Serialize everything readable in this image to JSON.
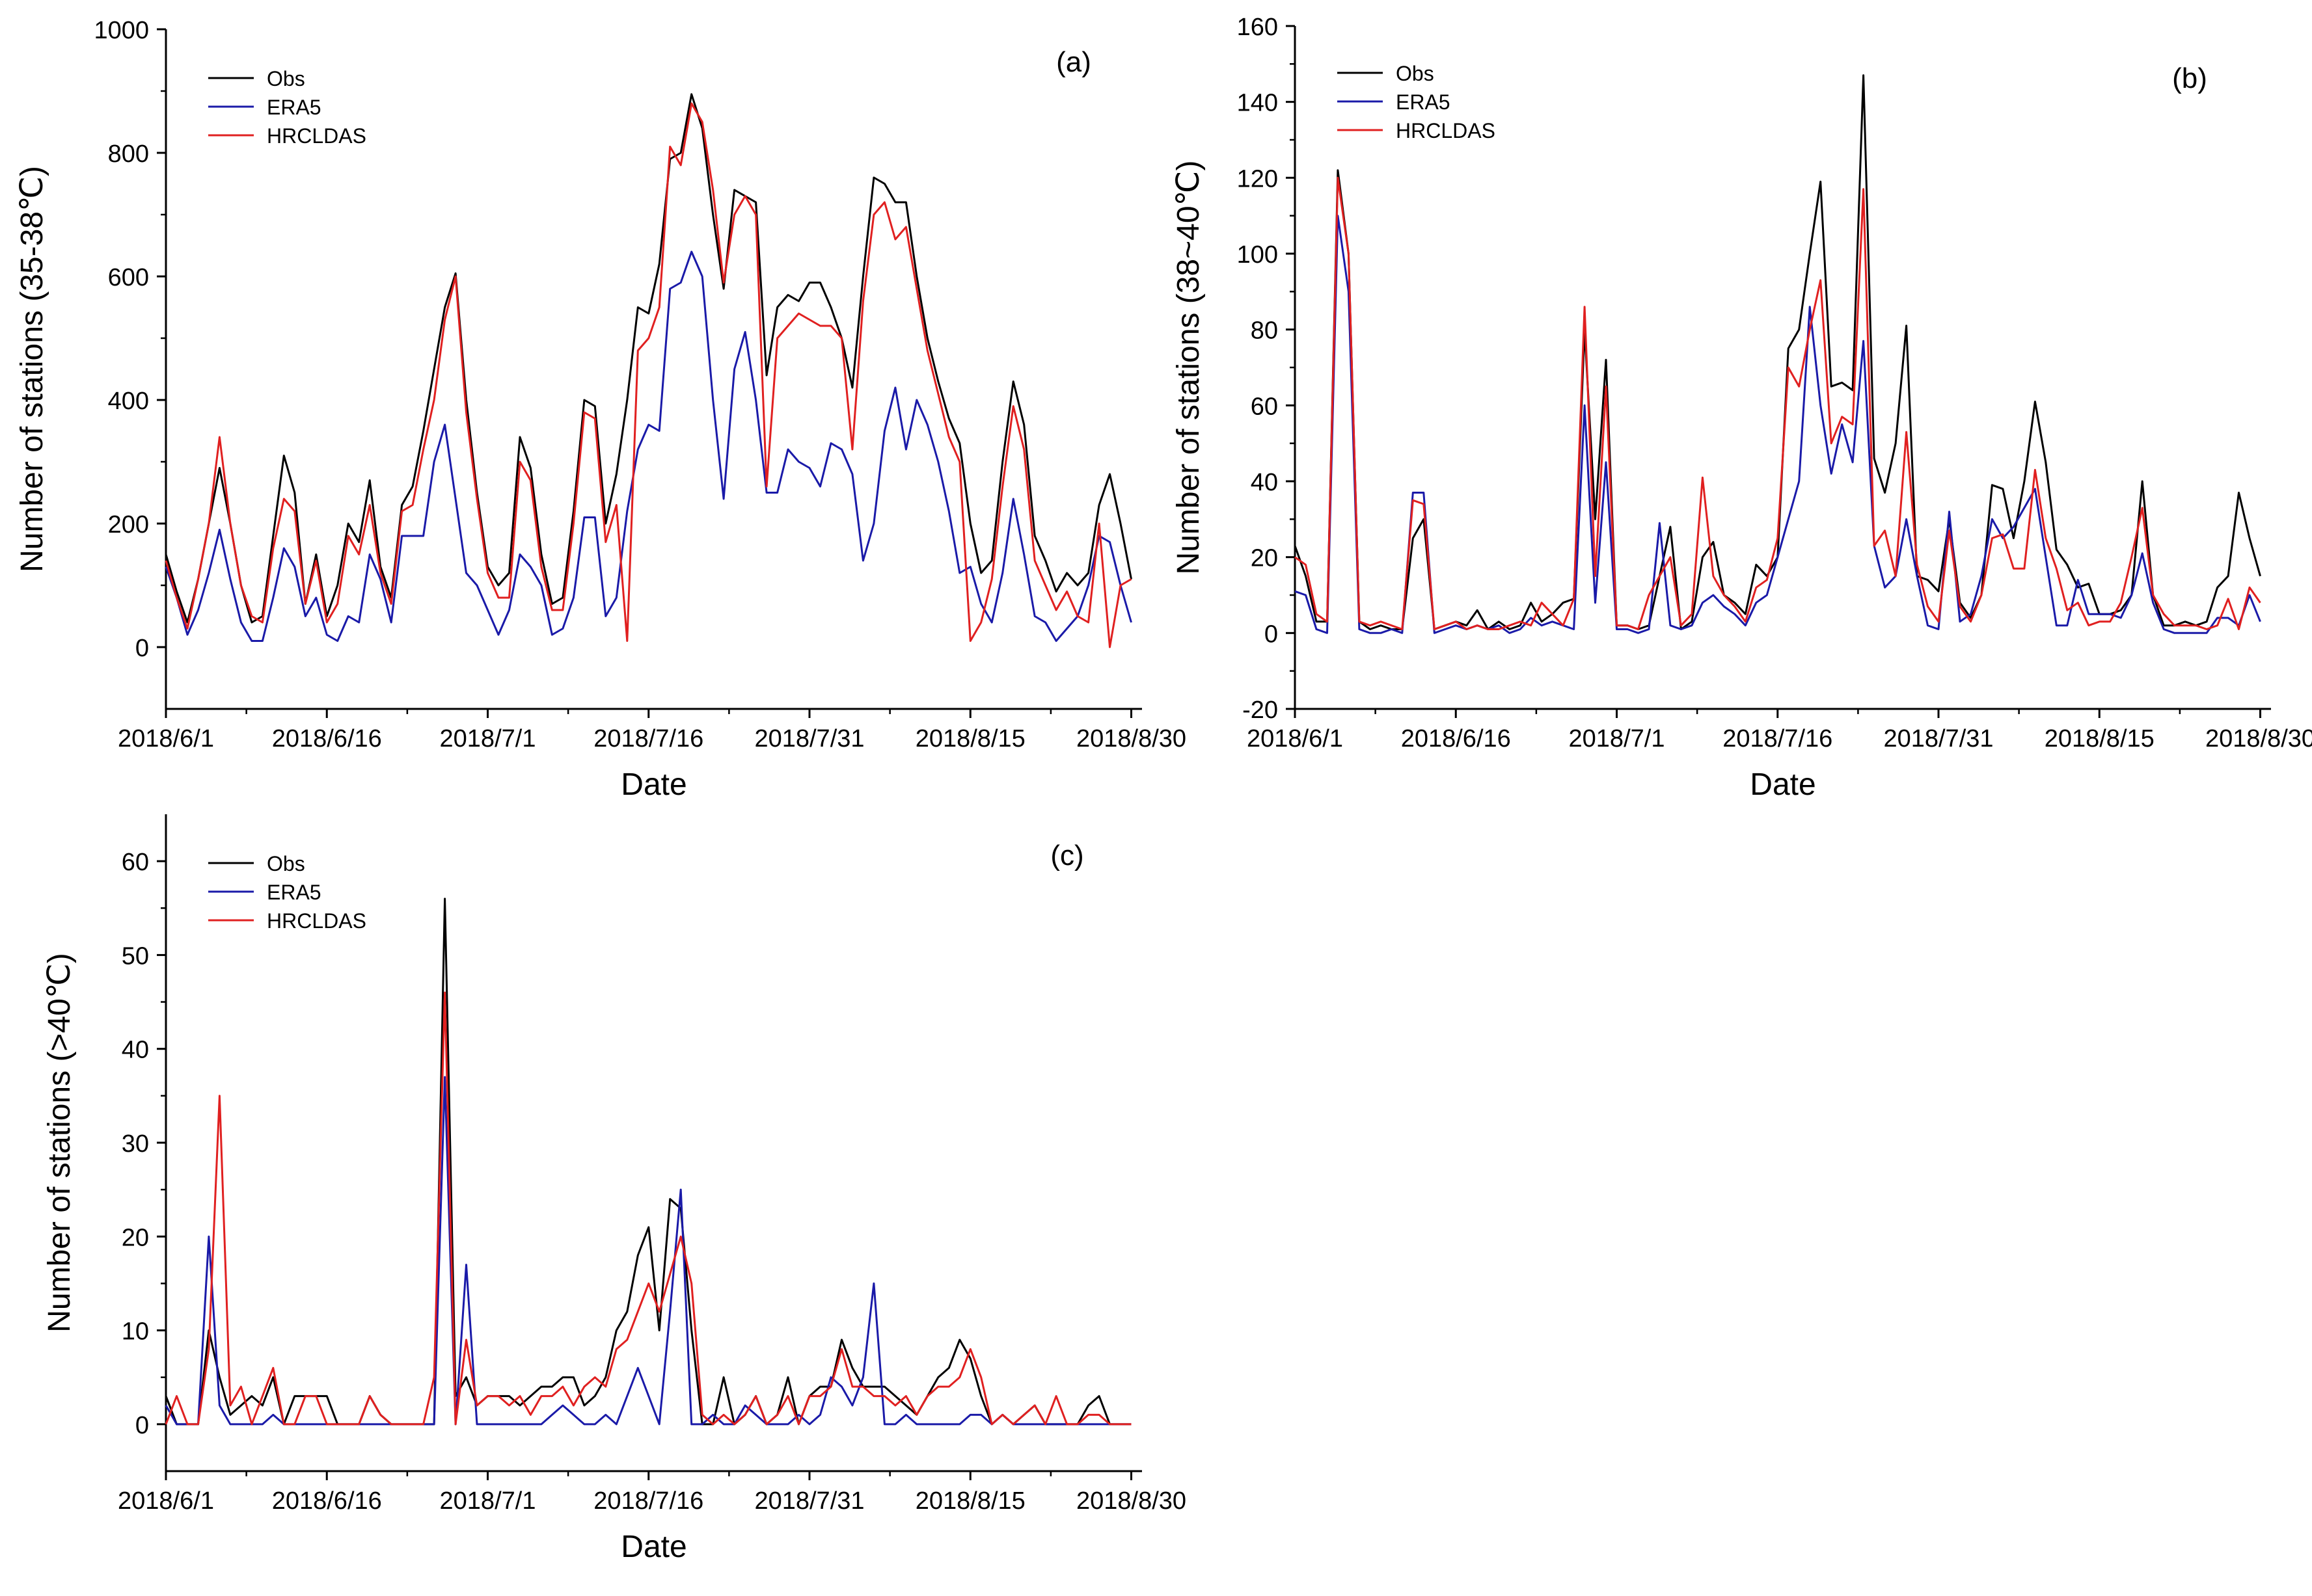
{
  "chart_data": [
    {
      "id": "a",
      "type": "line",
      "panel_label": "(a)",
      "xlabel": "Date",
      "ylabel": "Number of stations (35-38℃)",
      "ylim": [
        -100,
        1000
      ],
      "yticks": [
        0,
        200,
        400,
        600,
        800,
        1000
      ],
      "xlim": [
        0,
        91
      ],
      "xticks": [
        {
          "v": 0,
          "label": "2018/6/1"
        },
        {
          "v": 15,
          "label": "2018/6/16"
        },
        {
          "v": 30,
          "label": "2018/7/1"
        },
        {
          "v": 45,
          "label": "2018/7/16"
        },
        {
          "v": 60,
          "label": "2018/7/31"
        },
        {
          "v": 75,
          "label": "2018/8/15"
        },
        {
          "v": 90,
          "label": "2018/8/30"
        }
      ],
      "legend_position": "top-left",
      "series": [
        {
          "name": "Obs",
          "color": "#000000",
          "values": [
            150,
            90,
            40,
            110,
            200,
            290,
            200,
            100,
            40,
            50,
            180,
            310,
            250,
            70,
            150,
            50,
            100,
            200,
            170,
            270,
            130,
            80,
            230,
            260,
            350,
            450,
            550,
            605,
            400,
            250,
            130,
            100,
            120,
            340,
            290,
            150,
            70,
            80,
            220,
            400,
            390,
            200,
            280,
            400,
            550,
            540,
            620,
            790,
            800,
            895,
            840,
            700,
            580,
            740,
            730,
            720,
            440,
            550,
            570,
            560,
            590,
            590,
            550,
            500,
            420,
            600,
            760,
            750,
            720,
            720,
            600,
            500,
            430,
            370,
            330,
            200,
            120,
            140,
            300,
            430,
            360,
            180,
            140,
            90,
            120,
            100,
            120,
            230,
            280,
            200,
            110
          ]
        },
        {
          "name": "ERA5",
          "color": "#1a1aa8",
          "values": [
            130,
            80,
            20,
            60,
            120,
            190,
            110,
            40,
            10,
            10,
            80,
            160,
            130,
            50,
            80,
            20,
            10,
            50,
            40,
            150,
            110,
            40,
            180,
            180,
            180,
            300,
            360,
            240,
            120,
            100,
            60,
            20,
            60,
            150,
            130,
            100,
            20,
            30,
            80,
            210,
            210,
            50,
            80,
            220,
            320,
            360,
            350,
            580,
            590,
            640,
            600,
            400,
            240,
            450,
            510,
            400,
            250,
            250,
            320,
            300,
            290,
            260,
            330,
            320,
            280,
            140,
            200,
            350,
            420,
            320,
            400,
            360,
            300,
            220,
            120,
            130,
            70,
            40,
            120,
            240,
            150,
            50,
            40,
            10,
            30,
            50,
            100,
            180,
            170,
            100,
            40
          ]
        },
        {
          "name": "HRCLDAS",
          "color": "#e02020",
          "values": [
            140,
            80,
            30,
            110,
            200,
            340,
            200,
            100,
            50,
            40,
            160,
            240,
            220,
            70,
            140,
            40,
            70,
            180,
            150,
            230,
            120,
            70,
            220,
            230,
            320,
            400,
            530,
            600,
            380,
            240,
            120,
            80,
            80,
            300,
            270,
            130,
            60,
            60,
            200,
            380,
            370,
            170,
            230,
            10,
            480,
            500,
            550,
            810,
            780,
            880,
            850,
            740,
            590,
            700,
            730,
            700,
            260,
            500,
            520,
            540,
            530,
            520,
            520,
            500,
            320,
            560,
            700,
            720,
            660,
            680,
            580,
            480,
            410,
            340,
            300,
            10,
            40,
            110,
            260,
            390,
            320,
            140,
            100,
            60,
            90,
            50,
            40,
            200,
            0,
            100,
            110
          ]
        }
      ]
    },
    {
      "id": "b",
      "type": "line",
      "panel_label": "(b)",
      "xlabel": "Date",
      "ylabel": "Number of stations (38~40℃)",
      "ylim": [
        -20,
        160
      ],
      "yticks": [
        -20,
        0,
        20,
        40,
        60,
        80,
        100,
        120,
        140,
        160
      ],
      "xlim": [
        0,
        91
      ],
      "xticks": [
        {
          "v": 0,
          "label": "2018/6/1"
        },
        {
          "v": 15,
          "label": "2018/6/16"
        },
        {
          "v": 30,
          "label": "2018/7/1"
        },
        {
          "v": 45,
          "label": "2018/7/16"
        },
        {
          "v": 60,
          "label": "2018/7/31"
        },
        {
          "v": 75,
          "label": "2018/8/15"
        },
        {
          "v": 90,
          "label": "2018/8/30"
        }
      ],
      "legend_position": "top-left",
      "series": [
        {
          "name": "Obs",
          "color": "#000000",
          "values": [
            23,
            15,
            3,
            3,
            122,
            100,
            3,
            1,
            2,
            1,
            1,
            25,
            30,
            1,
            2,
            3,
            2,
            6,
            1,
            3,
            1,
            2,
            8,
            3,
            5,
            8,
            9,
            80,
            30,
            72,
            2,
            2,
            1,
            2,
            15,
            28,
            1,
            3,
            20,
            24,
            10,
            8,
            5,
            18,
            15,
            20,
            75,
            80,
            100,
            119,
            65,
            66,
            64,
            147,
            46,
            37,
            50,
            81,
            15,
            14,
            11,
            30,
            8,
            4,
            10,
            39,
            38,
            25,
            40,
            61,
            45,
            22,
            18,
            12,
            13,
            5,
            5,
            6,
            10,
            40,
            10,
            2,
            2,
            3,
            2,
            3,
            12,
            15,
            37,
            25,
            15
          ]
        },
        {
          "name": "ERA5",
          "color": "#1a1aa8",
          "values": [
            11,
            10,
            1,
            0,
            110,
            90,
            1,
            0,
            0,
            1,
            0,
            37,
            37,
            0,
            1,
            2,
            1,
            2,
            1,
            2,
            0,
            1,
            4,
            2,
            3,
            2,
            1,
            60,
            8,
            45,
            1,
            1,
            0,
            1,
            29,
            2,
            1,
            2,
            8,
            10,
            7,
            5,
            2,
            8,
            10,
            20,
            30,
            40,
            86,
            60,
            42,
            55,
            45,
            77,
            23,
            12,
            15,
            30,
            15,
            2,
            1,
            32,
            3,
            5,
            15,
            30,
            25,
            28,
            33,
            38,
            20,
            2,
            2,
            14,
            5,
            5,
            5,
            4,
            10,
            21,
            8,
            1,
            0,
            0,
            0,
            0,
            4,
            4,
            2,
            10,
            3
          ]
        },
        {
          "name": "HRCLDAS",
          "color": "#e02020",
          "values": [
            20,
            18,
            5,
            3,
            120,
            100,
            3,
            2,
            3,
            2,
            1,
            35,
            34,
            1,
            2,
            3,
            1,
            2,
            1,
            1,
            2,
            3,
            2,
            8,
            5,
            2,
            9,
            86,
            15,
            65,
            2,
            2,
            1,
            10,
            15,
            20,
            2,
            5,
            41,
            15,
            10,
            7,
            3,
            12,
            14,
            25,
            70,
            65,
            80,
            93,
            50,
            57,
            55,
            117,
            23,
            27,
            15,
            53,
            18,
            7,
            3,
            27,
            7,
            3,
            10,
            25,
            26,
            17,
            17,
            43,
            25,
            17,
            6,
            8,
            2,
            3,
            3,
            8,
            20,
            33,
            10,
            5,
            2,
            2,
            2,
            1,
            2,
            9,
            1,
            12,
            8
          ]
        }
      ]
    },
    {
      "id": "c",
      "type": "line",
      "panel_label": "(c)",
      "xlabel": "Date",
      "ylabel": "Number of stations (>40℃)",
      "ylim": [
        -5,
        65
      ],
      "yticks": [
        0,
        10,
        20,
        30,
        40,
        50,
        60
      ],
      "xlim": [
        0,
        91
      ],
      "xticks": [
        {
          "v": 0,
          "label": "2018/6/1"
        },
        {
          "v": 15,
          "label": "2018/6/16"
        },
        {
          "v": 30,
          "label": "2018/7/1"
        },
        {
          "v": 45,
          "label": "2018/7/16"
        },
        {
          "v": 60,
          "label": "2018/7/31"
        },
        {
          "v": 75,
          "label": "2018/8/15"
        },
        {
          "v": 90,
          "label": "2018/8/30"
        }
      ],
      "legend_position": "top-left",
      "series": [
        {
          "name": "Obs",
          "color": "#000000",
          "values": [
            3,
            0,
            0,
            0,
            10,
            5,
            1,
            2,
            3,
            2,
            5,
            0,
            3,
            3,
            3,
            3,
            0,
            0,
            0,
            3,
            1,
            0,
            0,
            0,
            0,
            0,
            56,
            3,
            5,
            2,
            3,
            3,
            3,
            2,
            3,
            4,
            4,
            5,
            5,
            2,
            3,
            5,
            10,
            12,
            18,
            21,
            10,
            24,
            23,
            10,
            0,
            0,
            5,
            0,
            1,
            3,
            0,
            1,
            5,
            0,
            3,
            4,
            4,
            9,
            6,
            4,
            4,
            4,
            3,
            2,
            1,
            3,
            5,
            6,
            9,
            7,
            3,
            0,
            1,
            0,
            1,
            2,
            0,
            0,
            0,
            0,
            2,
            3,
            0,
            0,
            0
          ]
        },
        {
          "name": "ERA5",
          "color": "#1a1aa8",
          "values": [
            2,
            0,
            0,
            0,
            20,
            2,
            0,
            0,
            0,
            0,
            1,
            0,
            0,
            0,
            0,
            0,
            0,
            0,
            0,
            0,
            0,
            0,
            0,
            0,
            0,
            0,
            37,
            0,
            17,
            0,
            0,
            0,
            0,
            0,
            0,
            0,
            1,
            2,
            1,
            0,
            0,
            1,
            0,
            3,
            6,
            3,
            0,
            12,
            25,
            0,
            0,
            1,
            0,
            0,
            2,
            1,
            0,
            0,
            0,
            1,
            0,
            1,
            5,
            4,
            2,
            5,
            15,
            0,
            0,
            1,
            0,
            0,
            0,
            0,
            0,
            1,
            1,
            0,
            1,
            0,
            0,
            0,
            0,
            0,
            0,
            0,
            0,
            0,
            0,
            0,
            0
          ]
        },
        {
          "name": "HRCLDAS",
          "color": "#e02020",
          "values": [
            0,
            3,
            0,
            0,
            8,
            35,
            2,
            4,
            0,
            3,
            6,
            0,
            0,
            3,
            3,
            0,
            0,
            0,
            0,
            3,
            1,
            0,
            0,
            0,
            0,
            5,
            46,
            0,
            9,
            2,
            3,
            3,
            2,
            3,
            1,
            3,
            3,
            4,
            2,
            4,
            5,
            4,
            8,
            9,
            12,
            15,
            12,
            16,
            20,
            15,
            1,
            0,
            1,
            0,
            1,
            3,
            0,
            1,
            3,
            0,
            3,
            3,
            4,
            8,
            4,
            4,
            3,
            3,
            2,
            3,
            1,
            3,
            4,
            4,
            5,
            8,
            5,
            0,
            1,
            0,
            1,
            2,
            0,
            3,
            0,
            0,
            1,
            1,
            0,
            0,
            0
          ]
        }
      ]
    }
  ]
}
